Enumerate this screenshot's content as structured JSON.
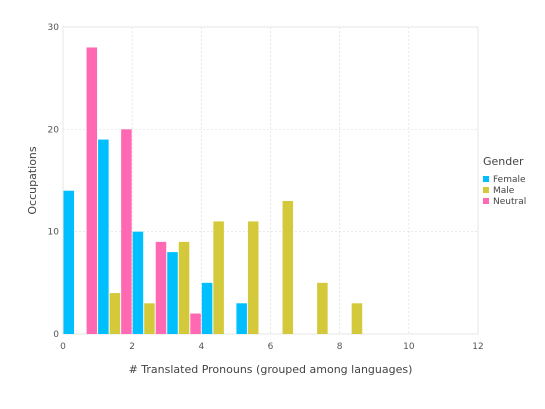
{
  "chart_data": {
    "type": "bar",
    "xlabel": "# Translated Pronouns (grouped among languages)",
    "ylabel": "Occupations",
    "xlim": [
      0,
      12
    ],
    "ylim": [
      0,
      30
    ],
    "x_ticks": [
      0,
      2,
      4,
      6,
      8,
      10,
      12
    ],
    "y_ticks": [
      0,
      10,
      20,
      30
    ],
    "grid": true,
    "bin_width": 1,
    "legend": {
      "title": "Gender",
      "position": "right"
    },
    "series": [
      {
        "name": "Female",
        "color": "#00bfff",
        "bins": [
          0,
          1,
          2,
          3,
          4,
          5
        ],
        "values": [
          14,
          19,
          10,
          8,
          5,
          3
        ]
      },
      {
        "name": "Male",
        "color": "#d4c93a",
        "bins": [
          1,
          2,
          3,
          4,
          5,
          6,
          7,
          8
        ],
        "values": [
          4,
          3,
          9,
          11,
          11,
          13,
          5,
          3
        ]
      },
      {
        "name": "Neutral",
        "color": "#ff69b4",
        "bins": [
          0,
          1,
          2,
          3
        ],
        "values": [
          28,
          20,
          9,
          2
        ]
      }
    ]
  }
}
